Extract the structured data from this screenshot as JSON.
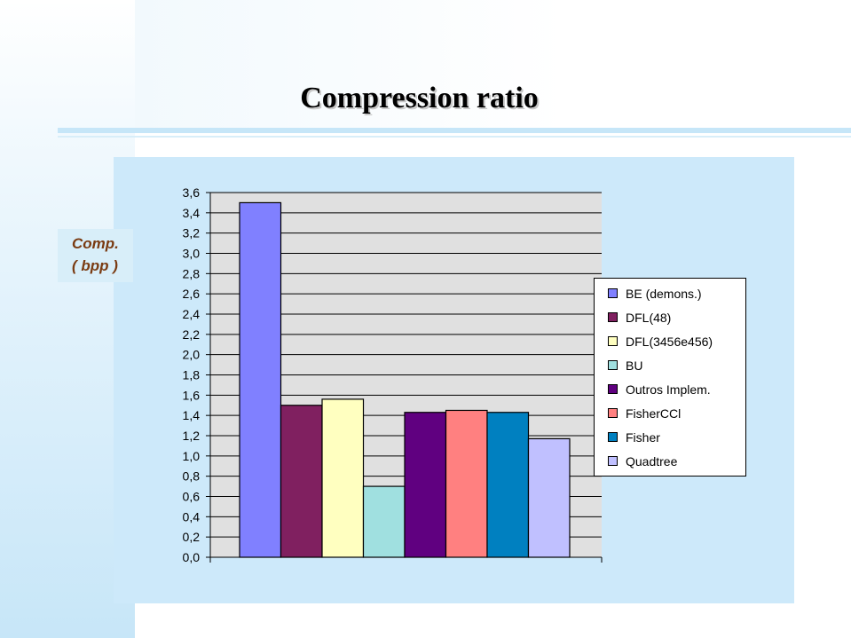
{
  "slide": {
    "title": "Compression ratio"
  },
  "chart_data": {
    "type": "bar",
    "title": "",
    "xlabel": "",
    "ylabel": "Comp.\n( bpp )",
    "ylim": [
      0,
      3.6
    ],
    "ytick_step": 0.2,
    "yticks": [
      "0,0",
      "0,2",
      "0,4",
      "0,6",
      "0,8",
      "1,0",
      "1,2",
      "1,4",
      "1,6",
      "1,8",
      "2,0",
      "2,2",
      "2,4",
      "2,6",
      "2,8",
      "3,0",
      "3,2",
      "3,4",
      "3,6"
    ],
    "grid": true,
    "plot_background": "#e0e0e0",
    "legend_position": "right",
    "series": [
      {
        "name": "BE (demons.)",
        "value": 3.5,
        "color": "#8080ff"
      },
      {
        "name": "DFL(48)",
        "value": 1.5,
        "color": "#802060"
      },
      {
        "name": "DFL(3456e456)",
        "value": 1.56,
        "color": "#ffffc0"
      },
      {
        "name": "BU",
        "value": 0.7,
        "color": "#a0e0e0"
      },
      {
        "name": "Outros Implem.",
        "value": 1.43,
        "color": "#600080"
      },
      {
        "name": "FisherCCl",
        "value": 1.45,
        "color": "#ff8080"
      },
      {
        "name": "Fisher",
        "value": 1.43,
        "color": "#0080c0"
      },
      {
        "name": "Quadtree",
        "value": 1.17,
        "color": "#c0c0ff"
      }
    ]
  }
}
